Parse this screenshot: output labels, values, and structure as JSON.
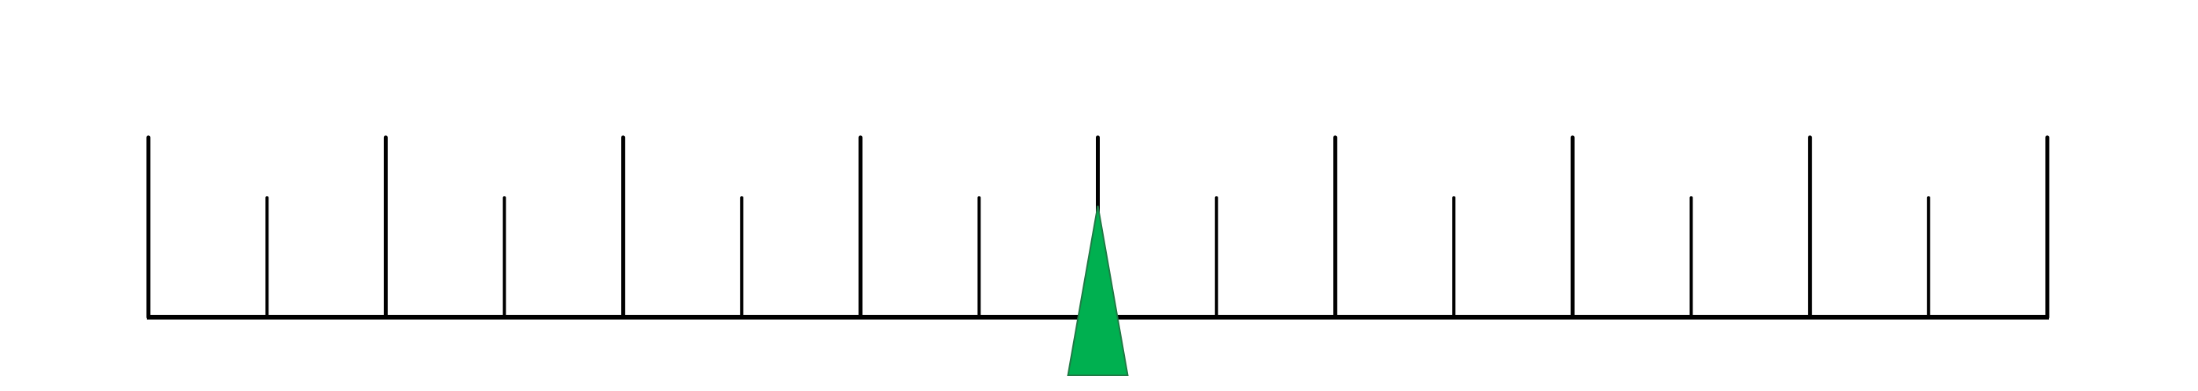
{
  "ruler": {
    "major_tick_count": 9,
    "minor_ticks_per_interval": 1,
    "line_color": "#000000",
    "background_color": "#ffffff"
  },
  "pointer": {
    "position_fraction": 0.5,
    "fill_color": "#00b050",
    "stroke_color": "#1f7a45",
    "icon": "triangle-pointer-icon"
  }
}
